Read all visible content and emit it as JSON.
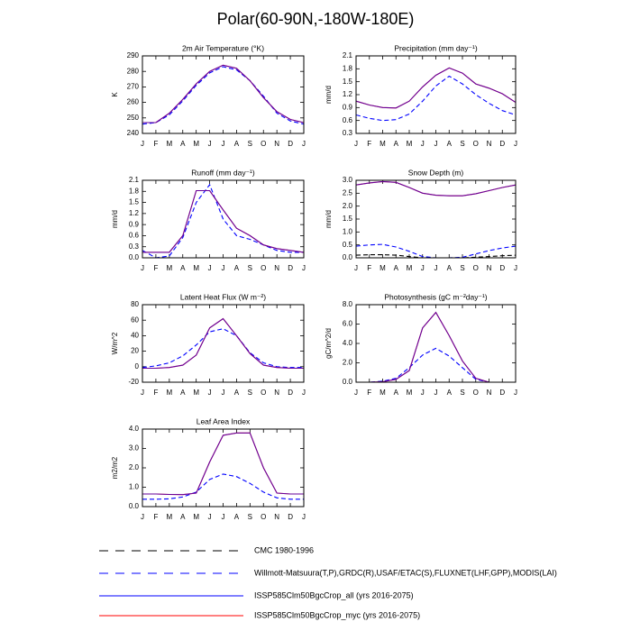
{
  "title": "Polar(60-90N,-180W-180E)",
  "legend": [
    {
      "name": "CMC 1980-1996",
      "color": "#000000",
      "dash": true
    },
    {
      "name": "Willmott-Matsuura(T,P),GRDC(R),USAF/ETAC(S),FLUXNET(LHF,GPP),MODIS(LAI)",
      "color": "#0000ff",
      "dash": true
    },
    {
      "name": "ISSP585Clm50BgcCrop_all (yrs 2016-2075)",
      "color": "#0000ff",
      "dash": false
    },
    {
      "name": "ISSP585Clm50BgcCrop_myc (yrs 2016-2075)",
      "color": "#ff0000",
      "dash": false
    }
  ],
  "chart_data": [
    {
      "type": "line",
      "title": "2m Air Temperature (°K)",
      "ylabel": "K",
      "categories": [
        "J",
        "F",
        "M",
        "A",
        "M",
        "J",
        "J",
        "A",
        "S",
        "O",
        "N",
        "D",
        "J"
      ],
      "ylim": [
        240,
        290
      ],
      "yticks": [
        240,
        250,
        260,
        270,
        280,
        290
      ],
      "series": [
        {
          "legend": 1,
          "values": [
            246,
            247,
            252,
            261,
            271,
            279,
            283,
            281,
            274,
            264,
            253,
            248,
            246
          ]
        },
        {
          "legend": 3,
          "values": [
            247,
            247,
            253,
            262,
            272,
            280,
            284,
            282,
            274,
            263,
            254,
            249,
            247
          ]
        },
        {
          "legend": 2,
          "values": [
            247,
            247,
            253,
            262,
            272,
            280,
            284,
            282,
            274,
            263,
            254,
            249,
            247
          ]
        }
      ]
    },
    {
      "type": "line",
      "title": "Precipitation (mm day⁻¹)",
      "ylabel": "mm/d",
      "categories": [
        "J",
        "F",
        "M",
        "A",
        "M",
        "J",
        "J",
        "A",
        "S",
        "O",
        "N",
        "D",
        "J"
      ],
      "ylim": [
        0.3,
        2.1
      ],
      "yticks": [
        0.3,
        0.6,
        0.9,
        1.2,
        1.5,
        1.8,
        2.1
      ],
      "series": [
        {
          "legend": 1,
          "values": [
            0.73,
            0.65,
            0.6,
            0.62,
            0.75,
            1.05,
            1.4,
            1.63,
            1.45,
            1.2,
            1.0,
            0.83,
            0.73
          ]
        },
        {
          "legend": 3,
          "values": [
            1.05,
            0.96,
            0.9,
            0.89,
            1.05,
            1.38,
            1.65,
            1.82,
            1.7,
            1.45,
            1.35,
            1.22,
            1.02
          ]
        },
        {
          "legend": 2,
          "values": [
            1.05,
            0.96,
            0.9,
            0.89,
            1.05,
            1.38,
            1.65,
            1.82,
            1.7,
            1.45,
            1.35,
            1.22,
            1.02
          ]
        }
      ]
    },
    {
      "type": "line",
      "title": "Runoff (mm day⁻¹)",
      "ylabel": "mm/d",
      "categories": [
        "J",
        "F",
        "M",
        "A",
        "M",
        "J",
        "J",
        "A",
        "S",
        "O",
        "N",
        "D",
        "J"
      ],
      "ylim": [
        0,
        2.1
      ],
      "yticks": [
        {
          "value": 0,
          "label": "0.0"
        },
        0.3,
        0.6,
        0.9,
        1.2,
        1.5,
        1.8,
        2.1
      ],
      "series": [
        {
          "legend": 1,
          "values": [
            0.2,
            0.0,
            0.05,
            0.55,
            1.5,
            1.98,
            1.05,
            0.6,
            0.5,
            0.35,
            0.2,
            0.15,
            0.15
          ]
        },
        {
          "legend": 3,
          "values": [
            0.15,
            0.15,
            0.15,
            0.6,
            1.82,
            1.82,
            1.3,
            0.8,
            0.6,
            0.35,
            0.25,
            0.2,
            0.15
          ]
        },
        {
          "legend": 2,
          "values": [
            0.15,
            0.15,
            0.15,
            0.6,
            1.82,
            1.82,
            1.3,
            0.8,
            0.6,
            0.35,
            0.25,
            0.2,
            0.15
          ]
        }
      ]
    },
    {
      "type": "line",
      "title": "Snow Depth (m)",
      "ylabel": "mm/d",
      "categories": [
        "J",
        "F",
        "M",
        "A",
        "M",
        "J",
        "J",
        "A",
        "S",
        "O",
        "N",
        "D",
        "J"
      ],
      "ylim": [
        0,
        3.0
      ],
      "yticks": [
        {
          "value": 0,
          "label": "0.0"
        },
        0.5,
        {
          "value": 1,
          "label": "1.0"
        },
        1.5,
        {
          "value": 2,
          "label": "2.0"
        },
        2.5,
        {
          "value": 3,
          "label": "3.0"
        }
      ],
      "series": [
        {
          "legend": 0,
          "values": [
            0.1,
            0.12,
            0.12,
            0.1,
            0.05,
            0.0,
            0.0,
            0.0,
            0.0,
            0.02,
            0.05,
            0.08,
            0.1
          ]
        },
        {
          "legend": 1,
          "values": [
            0.45,
            0.5,
            0.52,
            0.42,
            0.25,
            0.05,
            0.0,
            0.0,
            0.02,
            0.15,
            0.28,
            0.38,
            0.45
          ]
        },
        {
          "legend": 3,
          "values": [
            2.82,
            2.9,
            2.95,
            2.92,
            2.72,
            2.5,
            2.42,
            2.4,
            2.4,
            2.48,
            2.6,
            2.72,
            2.82
          ]
        },
        {
          "legend": 2,
          "values": [
            2.82,
            2.9,
            2.95,
            2.92,
            2.72,
            2.5,
            2.42,
            2.4,
            2.4,
            2.48,
            2.6,
            2.72,
            2.82
          ]
        }
      ]
    },
    {
      "type": "line",
      "title": "Latent Heat Flux (W m⁻²)",
      "ylabel": "W/m^2",
      "categories": [
        "J",
        "F",
        "M",
        "A",
        "M",
        "J",
        "J",
        "A",
        "S",
        "O",
        "N",
        "D",
        "J"
      ],
      "ylim": [
        -20,
        80
      ],
      "yticks": [
        -20,
        0,
        20,
        40,
        60,
        80
      ],
      "series": [
        {
          "legend": 1,
          "values": [
            -1,
            1,
            5,
            14,
            28,
            45,
            49,
            40,
            18,
            5,
            0,
            -1,
            -1
          ]
        },
        {
          "legend": 3,
          "values": [
            -2,
            -2,
            -1,
            2,
            15,
            50,
            62,
            40,
            17,
            2,
            -1,
            -2,
            -2
          ]
        },
        {
          "legend": 2,
          "values": [
            -2,
            -2,
            -1,
            2,
            15,
            50,
            62,
            40,
            17,
            2,
            -1,
            -2,
            -2
          ]
        }
      ]
    },
    {
      "type": "line",
      "title": "Photosynthesis (gC m⁻²day⁻¹)",
      "ylabel": "gC/m^2/d",
      "categories": [
        "J",
        "F",
        "M",
        "A",
        "M",
        "J",
        "J",
        "A",
        "S",
        "O",
        "N",
        "D",
        "J"
      ],
      "ylim": [
        0,
        8
      ],
      "yticks": [
        {
          "value": 0,
          "label": "0.0"
        },
        {
          "value": 2,
          "label": "2.0"
        },
        {
          "value": 4,
          "label": "4.0"
        },
        {
          "value": 6,
          "label": "6.0"
        },
        {
          "value": 8,
          "label": "8.0"
        }
      ],
      "series": [
        {
          "legend": 1,
          "values": [
            0,
            0,
            0.1,
            0.4,
            1.5,
            2.8,
            3.5,
            2.7,
            1.5,
            0.3,
            0,
            0,
            0
          ]
        },
        {
          "legend": 3,
          "values": [
            0,
            0,
            0.05,
            0.3,
            1.2,
            5.6,
            7.2,
            4.8,
            2.2,
            0.4,
            0,
            0,
            0
          ]
        },
        {
          "legend": 2,
          "values": [
            0,
            0,
            0.05,
            0.3,
            1.2,
            5.6,
            7.2,
            4.8,
            2.2,
            0.4,
            0,
            0,
            0
          ]
        }
      ]
    },
    {
      "type": "line",
      "title": "Leaf Area Index",
      "ylabel": "m2/m2",
      "categories": [
        "J",
        "F",
        "M",
        "A",
        "M",
        "J",
        "J",
        "A",
        "S",
        "O",
        "N",
        "D",
        "J"
      ],
      "ylim": [
        0,
        4
      ],
      "yticks": [
        {
          "value": 0,
          "label": "0.0"
        },
        {
          "value": 1,
          "label": "1.0"
        },
        {
          "value": 2,
          "label": "2.0"
        },
        {
          "value": 3,
          "label": "3.0"
        },
        {
          "value": 4,
          "label": "4.0"
        }
      ],
      "series": [
        {
          "legend": 1,
          "values": [
            0.38,
            0.38,
            0.4,
            0.5,
            0.75,
            1.4,
            1.68,
            1.55,
            1.2,
            0.75,
            0.45,
            0.38,
            0.38
          ]
        },
        {
          "legend": 3,
          "values": [
            0.65,
            0.65,
            0.63,
            0.62,
            0.7,
            2.3,
            3.68,
            3.8,
            3.8,
            2.0,
            0.7,
            0.65,
            0.65
          ]
        },
        {
          "legend": 2,
          "values": [
            0.65,
            0.65,
            0.63,
            0.62,
            0.7,
            2.3,
            3.68,
            3.8,
            3.8,
            2.0,
            0.7,
            0.65,
            0.65
          ]
        }
      ]
    }
  ]
}
